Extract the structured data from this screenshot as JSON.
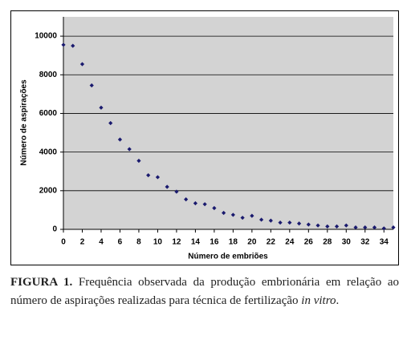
{
  "chart_data": {
    "type": "scatter",
    "x_label": "Número de embriões",
    "y_label": "Número de aspirações",
    "x": [
      0,
      1,
      2,
      3,
      4,
      5,
      6,
      7,
      8,
      9,
      10,
      11,
      12,
      13,
      14,
      15,
      16,
      17,
      18,
      19,
      20,
      21,
      22,
      23,
      24,
      25,
      26,
      27,
      28,
      29,
      30,
      31,
      32,
      33,
      34,
      35
    ],
    "values": [
      9550,
      9500,
      8550,
      7450,
      6300,
      5500,
      4650,
      4150,
      3550,
      2800,
      2700,
      2200,
      1950,
      1550,
      1350,
      1300,
      1100,
      850,
      750,
      600,
      700,
      500,
      450,
      350,
      350,
      300,
      250,
      200,
      150,
      150,
      200,
      100,
      100,
      100,
      50,
      100
    ],
    "color": "#1a1a6e",
    "xlim": [
      0,
      35
    ],
    "xticks": [
      0,
      2,
      4,
      6,
      8,
      10,
      12,
      14,
      16,
      18,
      20,
      22,
      24,
      26,
      28,
      30,
      32,
      34
    ],
    "ylim": [
      0,
      11000
    ],
    "yticks": [
      0,
      2000,
      4000,
      6000,
      8000,
      10000
    ],
    "grid": true
  },
  "caption": {
    "label": "FIGURA 1.",
    "text": "Frequência observada da produção embrionária em relação ao número de aspirações realizadas para técnica de fertilização",
    "italic": "in vitro",
    "end": "."
  }
}
